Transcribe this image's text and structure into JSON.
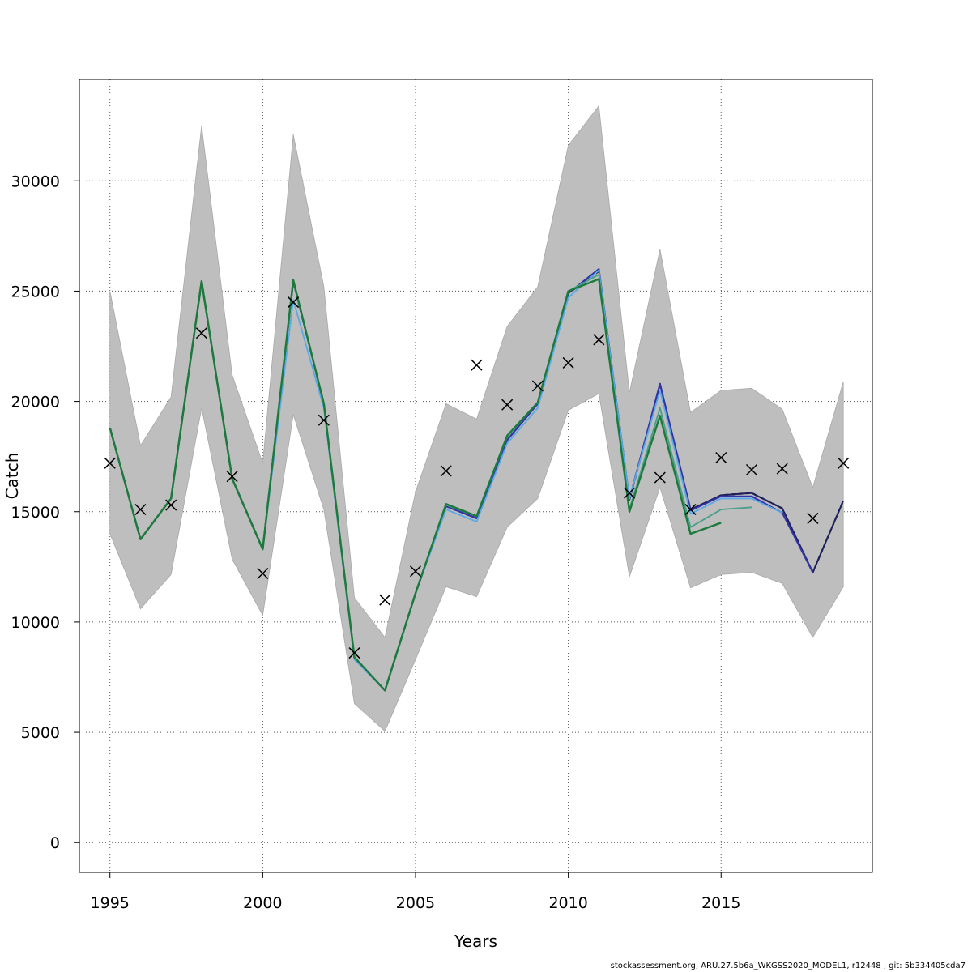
{
  "chart_data": {
    "type": "line",
    "xlabel": "Years",
    "ylabel": "Catch",
    "xlim": [
      1994.0,
      2019.95
    ],
    "ylim": [
      -1350,
      34600
    ],
    "x_ticks": [
      1995,
      2000,
      2005,
      2010,
      2015
    ],
    "y_ticks": [
      0,
      5000,
      10000,
      15000,
      20000,
      25000,
      30000
    ],
    "grid": true,
    "legend": "none",
    "colors": {
      "band": "#bebebe",
      "band_edge": "#a8a8a8",
      "main": "#1b7a3c",
      "retro_blue": "#3333aa",
      "retro_navy": "#1f1f5e",
      "retro_light": "#5aa9e6",
      "retro_teal": "#48a08a",
      "retro_black": "#222222",
      "observed": "#000000"
    },
    "confidence_band": {
      "x": [
        1995,
        1996,
        1997,
        1998,
        1999,
        2000,
        2001,
        2002,
        2003,
        2004,
        2005,
        2006,
        2007,
        2008,
        2009,
        2010,
        2011,
        2012,
        2013,
        2014,
        2015,
        2016,
        2017,
        2018,
        2019
      ],
      "lower": [
        14000,
        10600,
        12150,
        19700,
        12850,
        10300,
        19400,
        15100,
        6300,
        5050,
        8300,
        11600,
        11150,
        14300,
        15600,
        19600,
        20350,
        12050,
        16100,
        11550,
        12150,
        12250,
        11750,
        9300,
        11600
      ],
      "upper": [
        25000,
        18000,
        20200,
        32500,
        21200,
        17200,
        32100,
        25200,
        11100,
        9300,
        15900,
        19900,
        19200,
        23400,
        25200,
        31600,
        33400,
        20400,
        26900,
        19500,
        20500,
        20600,
        19650,
        16100,
        20900
      ]
    },
    "observed": {
      "x": [
        1995,
        1996,
        1997,
        1998,
        1999,
        2000,
        2001,
        2002,
        2003,
        2004,
        2005,
        2006,
        2007,
        2008,
        2009,
        2010,
        2011,
        2012,
        2013,
        2014,
        2015,
        2016,
        2017,
        2018,
        2019
      ],
      "y": [
        17200,
        15100,
        15300,
        23100,
        16600,
        12200,
        24500,
        19150,
        8600,
        11000,
        12300,
        16850,
        21650,
        19850,
        20700,
        21750,
        22800,
        15850,
        16550,
        15100,
        17450,
        16900,
        16950,
        14700,
        17200
      ]
    },
    "series": [
      {
        "x": [
          1995,
          1996,
          1997,
          1998,
          1999,
          2000,
          2001,
          2002,
          2003,
          2004,
          2005,
          2006,
          2007,
          2008,
          2009,
          2010,
          2011,
          2012,
          2013,
          2014,
          2015,
          2016,
          2017,
          2018,
          2019
        ],
        "values": [
          18800,
          13750,
          15600,
          25450,
          16500,
          13300,
          25450,
          19900,
          8350,
          6900,
          11300,
          15250,
          14700,
          18250,
          19900,
          24900,
          25900,
          15550,
          20700,
          15050,
          15750,
          15850,
          15150,
          12250,
          15500
        ],
        "color": "retro_black",
        "width": 2.2,
        "dash": "5,4"
      },
      {
        "x": [
          1995,
          1996,
          1997,
          1998,
          1999,
          2000,
          2001,
          2002,
          2003,
          2004,
          2005,
          2006,
          2007,
          2008,
          2009,
          2010,
          2011,
          2012,
          2013,
          2014,
          2015,
          2016,
          2017,
          2018,
          2019
        ],
        "values": [
          18800,
          13750,
          15600,
          25450,
          16500,
          13300,
          25450,
          19900,
          8350,
          6900,
          11300,
          15250,
          14700,
          18250,
          19900,
          24900,
          26000,
          15550,
          20800,
          15100,
          15750,
          15850,
          15150,
          12250,
          15500
        ],
        "color": "retro_navy",
        "width": 2.0
      },
      {
        "x": [
          1995,
          1996,
          1997,
          1998,
          1999,
          2000,
          2001,
          2002,
          2003,
          2004,
          2005,
          2006,
          2007,
          2008,
          2009,
          2010,
          2011,
          2012,
          2013,
          2014,
          2015,
          2016,
          2017,
          2018
        ],
        "values": [
          18800,
          13750,
          15600,
          25450,
          16500,
          13300,
          25450,
          19900,
          8350,
          6900,
          11300,
          15250,
          14700,
          18250,
          19900,
          24900,
          26000,
          15550,
          20800,
          15050,
          15700,
          15700,
          14950,
          12250
        ],
        "color": "retro_blue",
        "width": 2.0
      },
      {
        "x": [
          1995,
          1996,
          1997,
          1998,
          1999,
          2000,
          2001,
          2002,
          2003,
          2004,
          2005,
          2006,
          2007,
          2008,
          2009,
          2010,
          2011,
          2012,
          2013,
          2014,
          2015,
          2016,
          2017
        ],
        "values": [
          18800,
          13750,
          15600,
          25450,
          16500,
          13300,
          24600,
          19700,
          8300,
          6900,
          11300,
          15100,
          14550,
          18100,
          19700,
          24700,
          25950,
          15600,
          20500,
          14900,
          15600,
          15600,
          14950
        ],
        "color": "retro_light",
        "width": 1.8
      },
      {
        "x": [
          1995,
          1996,
          1997,
          1998,
          1999,
          2000,
          2001,
          2002,
          2003,
          2004,
          2005,
          2006,
          2007,
          2008,
          2009,
          2010,
          2011,
          2012,
          2013,
          2014,
          2015,
          2016
        ],
        "values": [
          18800,
          13750,
          15600,
          25450,
          16500,
          13300,
          25450,
          19900,
          8400,
          6900,
          11300,
          15300,
          14800,
          18400,
          19950,
          25000,
          25750,
          15100,
          19700,
          14300,
          15100,
          15200
        ],
        "color": "retro_teal",
        "width": 1.8
      },
      {
        "x": [
          1995,
          1996,
          1997,
          1998,
          1999,
          2000,
          2001,
          2002,
          2003,
          2004,
          2005,
          2006,
          2007,
          2008,
          2009,
          2010,
          2011,
          2012,
          2013,
          2014,
          2015
        ],
        "values": [
          18800,
          13750,
          15600,
          25450,
          16500,
          13300,
          25500,
          19900,
          8400,
          6900,
          11300,
          15350,
          14800,
          18450,
          19950,
          25000,
          25550,
          15000,
          19350,
          14000,
          14500
        ],
        "color": "main",
        "width": 2.4
      }
    ]
  },
  "footer_text": "stockassessment.org, ARU.27.5b6a_WKGSS2020_MODEL1, r12448 , git: 5b334405cda7"
}
